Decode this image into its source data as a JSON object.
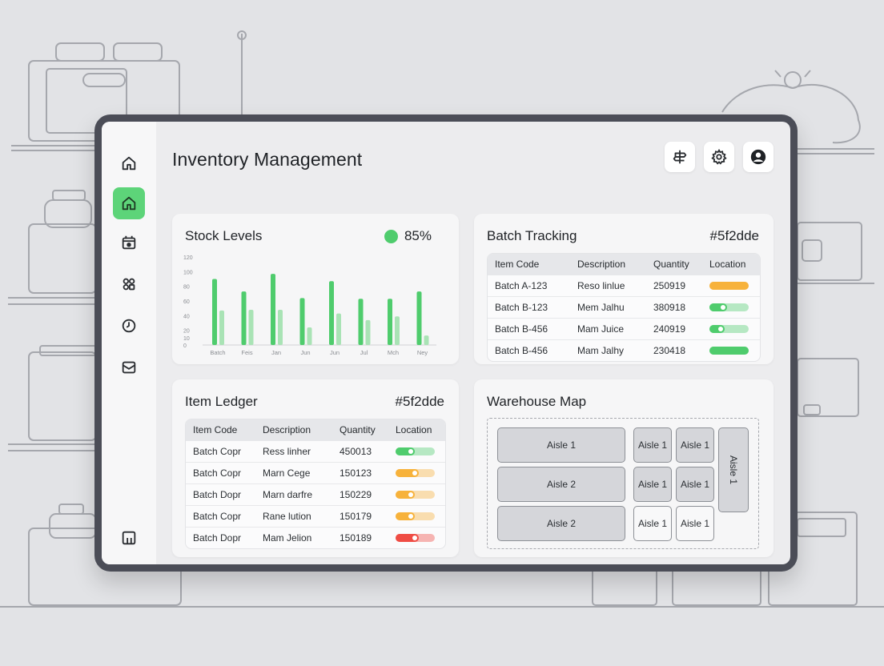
{
  "app": {
    "title": "Inventory Management"
  },
  "sidebar": {
    "items": [
      {
        "icon": "home-icon"
      },
      {
        "icon": "home-icon",
        "active": true
      },
      {
        "icon": "calendar-icon"
      },
      {
        "icon": "network-icon"
      },
      {
        "icon": "clock-icon"
      },
      {
        "icon": "inbox-icon"
      },
      {
        "icon": "layout-icon"
      }
    ]
  },
  "toolbar": {
    "buttons": [
      "signpost-icon",
      "gear-icon",
      "user-icon"
    ]
  },
  "stock": {
    "title": "Stock Levels",
    "percent": "85%",
    "status_color": "#4fcc6d"
  },
  "chart_data": {
    "type": "bar",
    "categories": [
      "Batch",
      "Feis",
      "Jan",
      "Jun",
      "Jun",
      "Jul",
      "Mch",
      "Ney"
    ],
    "series": [
      {
        "values": [
          90,
          73,
          97,
          64,
          87,
          63,
          63,
          73
        ],
        "color": "#4fcc6d"
      },
      {
        "values": [
          47,
          48,
          48,
          24,
          43,
          34,
          39,
          13
        ],
        "color": "#a9e3b5"
      }
    ],
    "yticks": [
      0,
      10,
      20,
      40,
      60,
      80,
      100,
      120
    ],
    "ylim": [
      0,
      120
    ],
    "grid": false
  },
  "batch": {
    "title": "Batch Tracking",
    "tag": "#5f2dde",
    "columns": [
      "Item Code",
      "Description",
      "Quantity",
      "Location"
    ],
    "rows": [
      {
        "code": "Batch A-123",
        "desc": "Reso linlue",
        "qty": "250919",
        "level": 1.0,
        "color": "#f7b23b"
      },
      {
        "code": "Batch B-123",
        "desc": "Mem Jalhu",
        "qty": "380918",
        "level": 0.45,
        "color": "#4fcc6d"
      },
      {
        "code": "Batch B-456",
        "desc": "Mam Juice",
        "qty": "240919",
        "level": 0.38,
        "color": "#4fcc6d"
      },
      {
        "code": "Batch B-456",
        "desc": "Mam Jalhy",
        "qty": "230418",
        "level": 1.0,
        "color": "#4fcc6d"
      }
    ]
  },
  "ledger": {
    "title": "Item Ledger",
    "tag": "#5f2dde",
    "columns": [
      "Item Code",
      "Description",
      "Quantity",
      "Location"
    ],
    "rows": [
      {
        "code": "Batch Copr",
        "desc": "Ress linher",
        "qty": "450013",
        "level": 0.48,
        "color": "#4fcc6d"
      },
      {
        "code": "Batch Copr",
        "desc": "Marn Cege",
        "qty": "150123",
        "level": 0.6,
        "color": "#f7b23b"
      },
      {
        "code": "Batch Dopr",
        "desc": "Marn darfre",
        "qty": "150229",
        "level": 0.48,
        "color": "#f7b23b"
      },
      {
        "code": "Batch Copr",
        "desc": "Rane lution",
        "qty": "150179",
        "level": 0.48,
        "color": "#f7b23b"
      },
      {
        "code": "Batch Dopr",
        "desc": "Mam Jelion",
        "qty": "150189",
        "level": 0.6,
        "color": "#ef4c44"
      }
    ]
  },
  "warehouse": {
    "title": "Warehouse Map",
    "aisles": [
      "Aisle 1",
      "Aisle 2",
      "Aisle 2",
      "Aisle 1",
      "Aisle 1",
      "Aisle 1",
      "Aisle 1",
      "Aisle 1",
      "Aisle 1",
      "Aisle 1"
    ]
  }
}
